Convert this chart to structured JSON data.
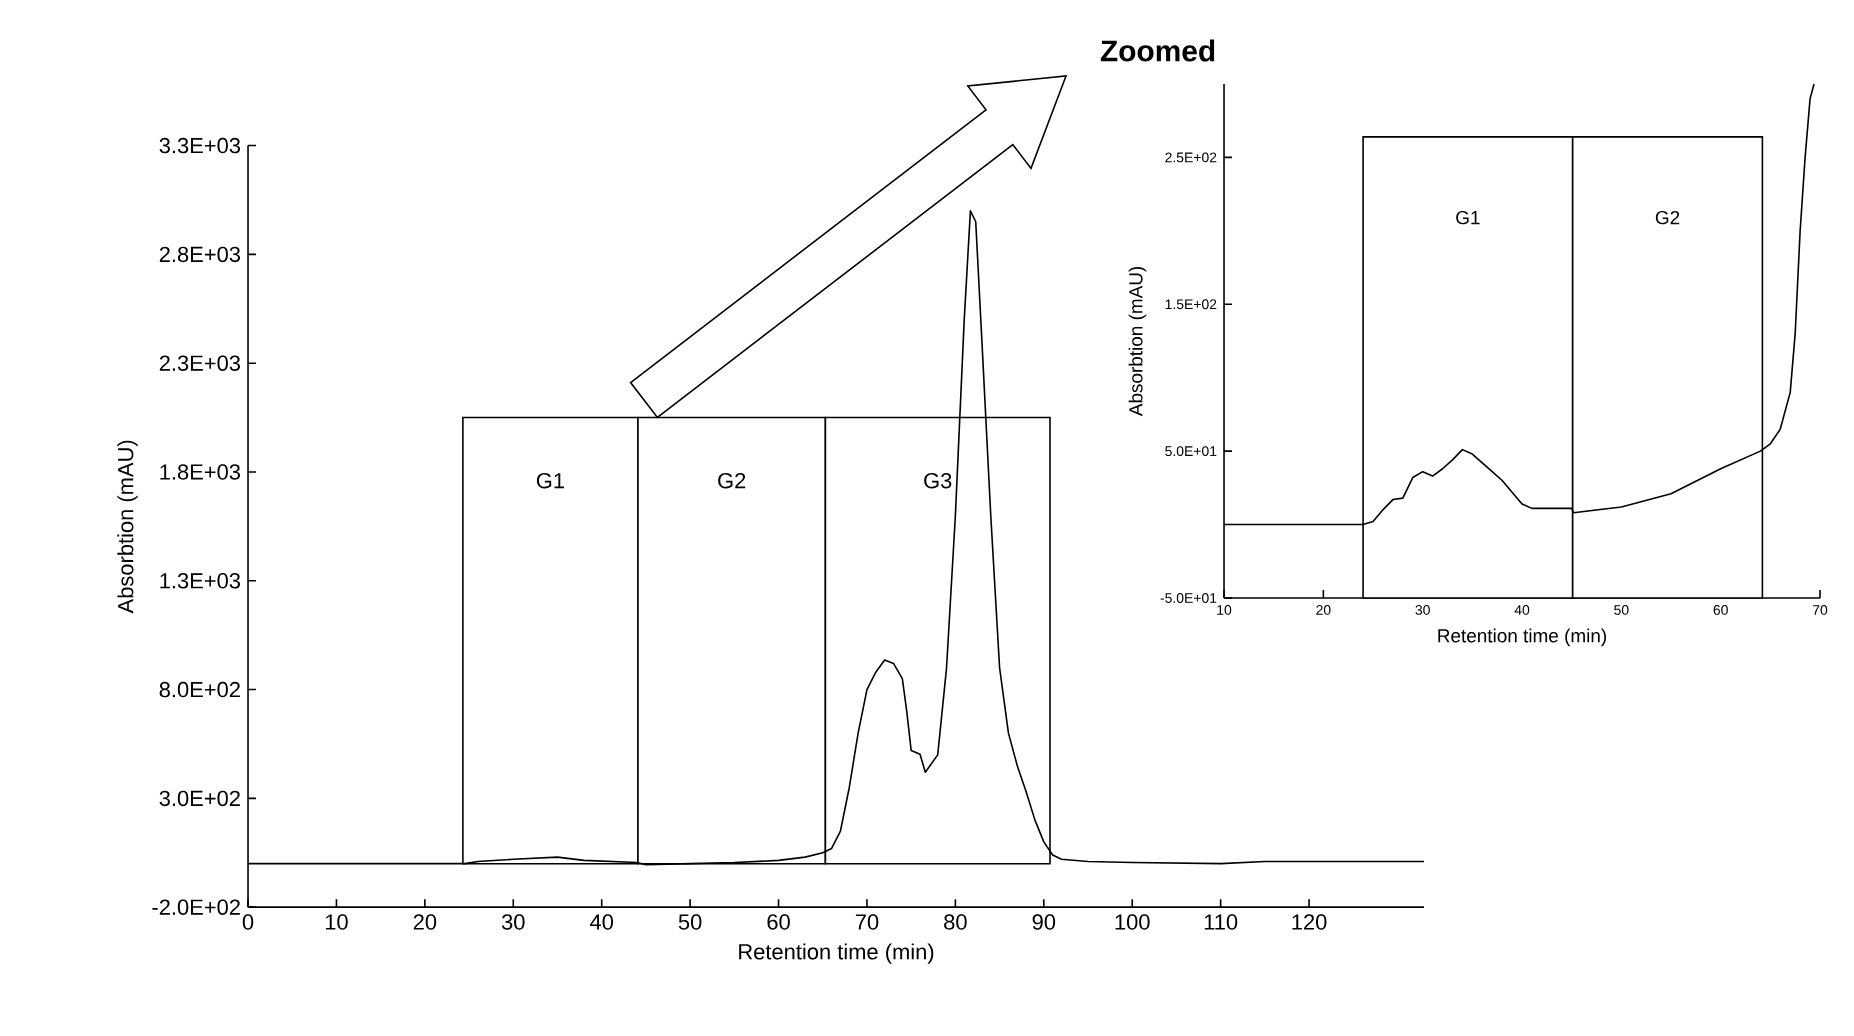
{
  "chart_data": [
    {
      "type": "line",
      "xlabel": "Retention time (min)",
      "ylabel": "Absorbtion (mAU)",
      "xlim": [
        0,
        133
      ],
      "ylim": [
        -200,
        3300
      ],
      "xticks": [
        0,
        10,
        20,
        30,
        40,
        50,
        60,
        70,
        80,
        90,
        100,
        110,
        120
      ],
      "yticks": [
        {
          "value": -200,
          "label": "-2.0E+02"
        },
        {
          "value": 300,
          "label": "3.0E+02"
        },
        {
          "value": 800,
          "label": "8.0E+02"
        },
        {
          "value": 1300,
          "label": "1.3E+03"
        },
        {
          "value": 1800,
          "label": "1.8E+03"
        },
        {
          "value": 2300,
          "label": "2.3E+03"
        },
        {
          "value": 2800,
          "label": "2.8E+03"
        },
        {
          "value": 3300,
          "label": "3.3E+03"
        }
      ],
      "bands": [
        {
          "axis": "x",
          "from": 24.3,
          "to": 44.1,
          "label": "G1"
        },
        {
          "axis": "x",
          "from": 44.1,
          "to": 65.3,
          "label": "G2"
        },
        {
          "axis": "x",
          "from": 65.3,
          "to": 90.7,
          "label": "G3"
        }
      ],
      "series": [
        {
          "color": "#000000",
          "x": [
            0,
            24.5,
            26,
            30,
            35,
            38,
            44,
            45,
            50,
            55,
            60,
            63,
            65,
            66,
            67,
            68,
            69,
            70,
            71,
            72,
            73,
            74,
            74.5,
            75,
            76,
            76.6,
            78,
            79,
            80,
            81,
            81.7,
            82.3,
            83,
            84,
            85,
            86,
            87,
            88,
            89,
            90,
            91,
            92,
            95,
            100,
            110,
            115,
            133
          ],
          "values": [
            0,
            0,
            10,
            20,
            30,
            15,
            5,
            -5,
            0,
            5,
            15,
            30,
            50,
            70,
            150,
            350,
            600,
            800,
            880,
            936,
            920,
            850,
            700,
            520,
            503,
            420,
            500,
            900,
            1600,
            2500,
            3000,
            2950,
            2400,
            1600,
            900,
            600,
            450,
            330,
            200,
            100,
            40,
            20,
            10,
            5,
            0,
            10,
            10
          ]
        }
      ]
    },
    {
      "type": "line",
      "title": "Zoomed",
      "xlabel": "Retention time (min)",
      "ylabel": "Absorbtion (mAU)",
      "xlim": [
        10,
        70
      ],
      "ylim": [
        -50,
        300
      ],
      "xticks": [
        10,
        20,
        30,
        40,
        50,
        60,
        70
      ],
      "yticks": [
        {
          "value": -50,
          "label": "-5.0E+01"
        },
        {
          "value": 50,
          "label": "5.0E+01"
        },
        {
          "value": 150,
          "label": "1.5E+02"
        },
        {
          "value": 250,
          "label": "2.5E+02"
        }
      ],
      "bands": [
        {
          "axis": "x",
          "from": 24,
          "to": 45.1,
          "label": "G1"
        },
        {
          "axis": "x",
          "from": 45.1,
          "to": 64.2,
          "label": "G2"
        }
      ],
      "series": [
        {
          "color": "#000000",
          "x": [
            10,
            24,
            25,
            26,
            27,
            28,
            29,
            30,
            31,
            32,
            33,
            34,
            35,
            36,
            37,
            38,
            39,
            40,
            41,
            45,
            45.2,
            50,
            55,
            60,
            64,
            65,
            66,
            67,
            67.5,
            68,
            68.5,
            69,
            69.4
          ],
          "values": [
            0,
            0,
            2,
            10,
            17,
            18,
            32,
            36,
            33,
            38,
            44,
            51,
            48,
            42,
            36,
            30,
            22,
            14,
            11,
            11,
            8,
            12,
            21,
            38,
            50,
            55,
            65,
            90,
            130,
            200,
            250,
            290,
            300
          ]
        }
      ]
    }
  ]
}
